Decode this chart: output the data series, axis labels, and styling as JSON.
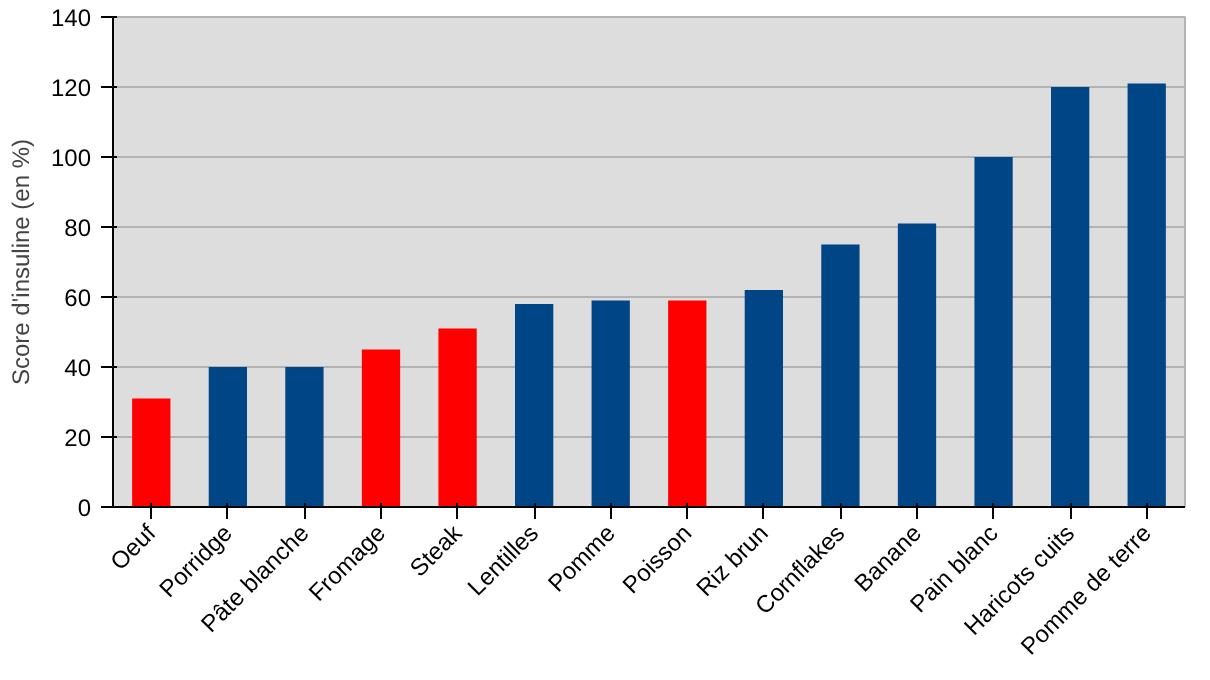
{
  "chart_data": {
    "type": "bar",
    "ylabel": "Score d'insuline (en %)",
    "categories": [
      "Oeuf",
      "Porridge",
      "Pâte blanche",
      "Fromage",
      "Steak",
      "Lentilles",
      "Pomme",
      "Poisson",
      "Riz brun",
      "Cornflakes",
      "Banane",
      "Pain blanc",
      "Haricots cuits",
      "Pomme de terre"
    ],
    "values": [
      31,
      40,
      40,
      45,
      51,
      58,
      59,
      59,
      62,
      75,
      81,
      100,
      120,
      121
    ],
    "colors": [
      "#ff0000",
      "#004586",
      "#004586",
      "#ff0000",
      "#ff0000",
      "#004586",
      "#004586",
      "#ff0000",
      "#004586",
      "#004586",
      "#004586",
      "#004586",
      "#004586",
      "#004586"
    ],
    "ylim": [
      0,
      140
    ],
    "yticks": [
      0,
      20,
      40,
      60,
      80,
      100,
      120,
      140
    ],
    "grid": "y"
  }
}
